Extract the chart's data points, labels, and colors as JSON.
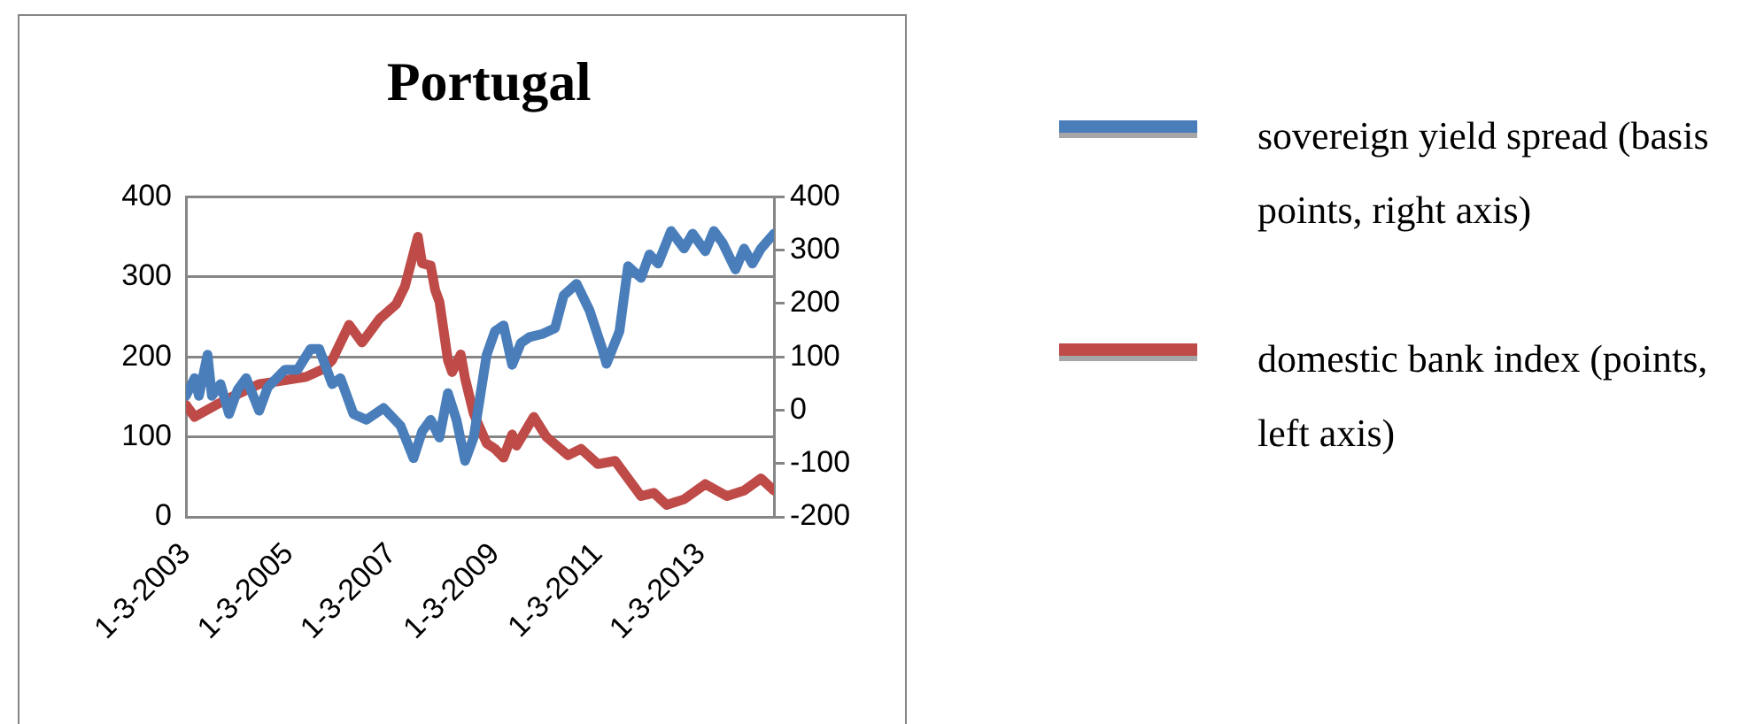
{
  "chart_data": {
    "type": "line",
    "title": "Portugal",
    "legend": "right",
    "grid": "y",
    "xlim": [
      "2003-03",
      "2014-08"
    ],
    "xticks": [
      {
        "value": "2003-03-01",
        "label": "1-3-2003"
      },
      {
        "value": "2005-03-01",
        "label": "1-3-2005"
      },
      {
        "value": "2007-03-01",
        "label": "1-3-2007"
      },
      {
        "value": "2009-03-01",
        "label": "1-3-2009"
      },
      {
        "value": "2011-03-01",
        "label": "1-3-2011"
      },
      {
        "value": "2013-03-01",
        "label": "1-3-2013"
      }
    ],
    "ylim": [
      0,
      400
    ],
    "yticks": [
      0,
      100,
      200,
      300,
      400
    ],
    "y2lim": [
      -200,
      400
    ],
    "y2ticks": [
      -200,
      -100,
      0,
      100,
      200,
      300,
      400
    ],
    "series": [
      {
        "name": "sovereign yield spread (basis points, right axis)",
        "color": "#4a7ebb",
        "axis": "y2",
        "x": [
          "2003-03",
          "2003-05",
          "2003-06",
          "2003-08",
          "2003-09",
          "2003-11",
          "2004-01",
          "2004-03",
          "2004-05",
          "2004-08",
          "2004-10",
          "2005-02",
          "2005-05",
          "2005-08",
          "2005-10",
          "2006-01",
          "2006-03",
          "2006-06",
          "2006-09",
          "2007-01",
          "2007-05",
          "2007-08",
          "2007-10",
          "2007-12",
          "2008-02",
          "2008-04",
          "2008-06",
          "2008-08",
          "2008-10",
          "2009-01",
          "2009-03",
          "2009-05",
          "2009-07",
          "2009-09",
          "2009-11",
          "2010-02",
          "2010-05",
          "2010-07",
          "2010-10",
          "2011-01",
          "2011-04",
          "2011-05",
          "2011-08",
          "2011-10",
          "2012-01",
          "2012-03",
          "2012-05",
          "2012-08",
          "2012-11",
          "2013-01",
          "2013-04",
          "2013-06",
          "2013-08",
          "2013-11",
          "2014-01",
          "2014-03",
          "2014-05",
          "2014-08"
        ],
        "values": [
          27,
          60,
          27,
          104,
          27,
          49,
          -7,
          38,
          60,
          -1,
          43,
          76,
          76,
          115,
          115,
          49,
          60,
          -7,
          -18,
          4,
          -29,
          -90,
          -40,
          -18,
          -51,
          32,
          -18,
          -95,
          -51,
          104,
          148,
          159,
          85,
          126,
          137,
          143,
          154,
          215,
          237,
          187,
          115,
          87,
          148,
          270,
          248,
          292,
          275,
          336,
          303,
          331,
          298,
          336,
          314,
          264,
          303,
          275,
          303,
          331
        ]
      },
      {
        "name": "domestic bank index (points, left axis)",
        "color": "#be4b48",
        "axis": "y",
        "x": [
          "2003-03",
          "2003-05",
          "2003-10",
          "2004-02",
          "2004-08",
          "2005-01",
          "2005-07",
          "2005-11",
          "2006-01",
          "2006-05",
          "2006-08",
          "2006-12",
          "2007-04",
          "2007-06",
          "2007-09",
          "2007-10",
          "2007-12",
          "2008-01",
          "2008-02",
          "2008-04",
          "2008-05",
          "2008-07",
          "2008-08",
          "2008-10",
          "2009-01",
          "2009-03",
          "2009-05",
          "2009-07",
          "2009-08",
          "2009-12",
          "2010-03",
          "2010-08",
          "2010-11",
          "2011-03",
          "2011-07",
          "2012-01",
          "2012-04",
          "2012-07",
          "2012-11",
          "2013-04",
          "2013-09",
          "2014-01",
          "2014-05",
          "2014-08"
        ],
        "values": [
          140,
          125,
          140,
          151,
          166,
          170,
          175,
          185,
          196,
          240,
          218,
          247,
          266,
          288,
          350,
          317,
          314,
          284,
          269,
          196,
          181,
          203,
          173,
          129,
          92,
          85,
          74,
          103,
          89,
          125,
          100,
          77,
          85,
          66,
          70,
          26,
          30,
          15,
          22,
          41,
          26,
          33,
          48,
          33
        ]
      }
    ]
  }
}
